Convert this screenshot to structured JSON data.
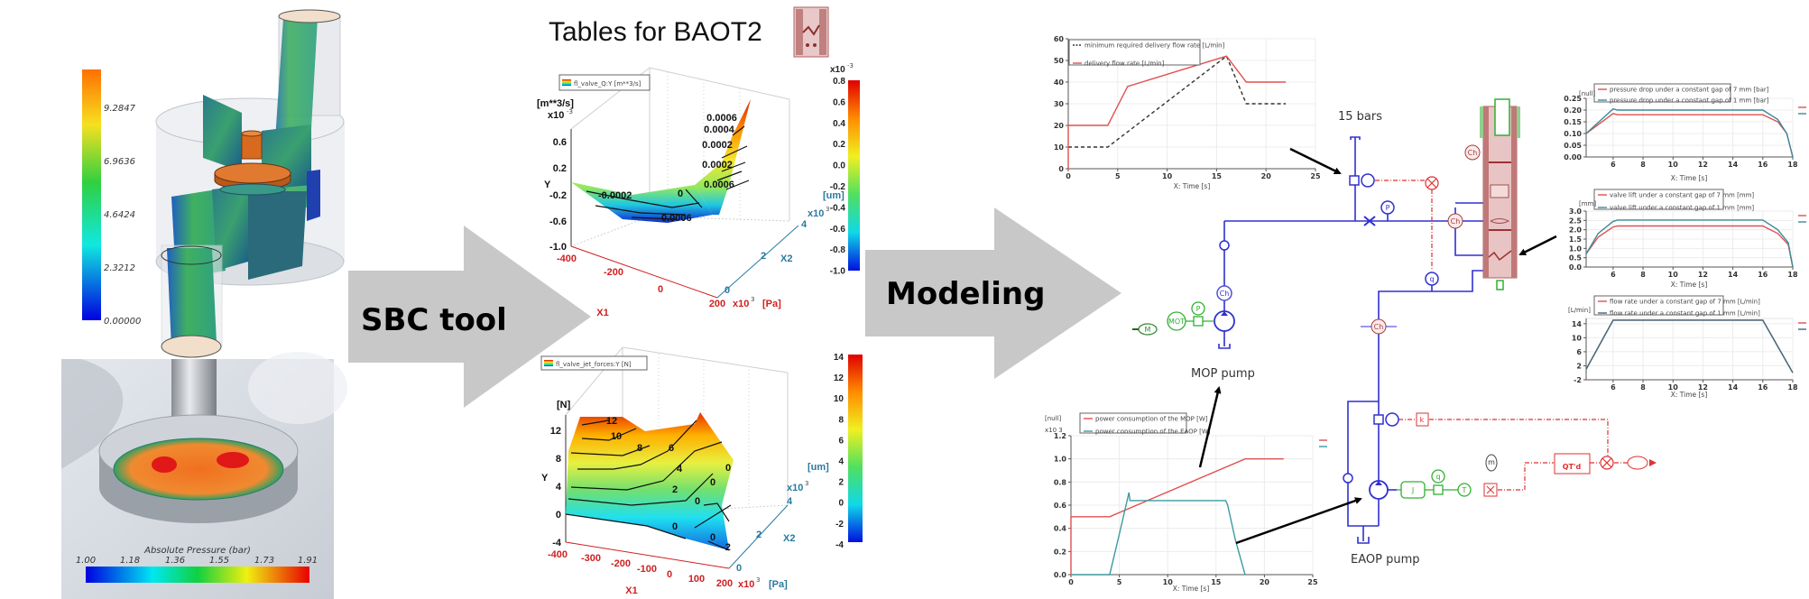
{
  "cfd_flow": {
    "colorbar_ticks": [
      "9.2847",
      "6.9636",
      "4.6424",
      "2.3212",
      "0.00000"
    ],
    "colors": {
      "max": "#ff7000",
      "min": "#0000e0",
      "valve": "#d86a20"
    }
  },
  "cfd_pressure": {
    "title": "Absolute Pressure (bar)",
    "ticks": [
      "1.00",
      "1.18",
      "1.36",
      "1.55",
      "1.73",
      "1.91"
    ]
  },
  "steps": {
    "sbc": "SBC tool",
    "modeling": "Modeling",
    "arrow_color": "#c8c8c8"
  },
  "tables": {
    "title": "Tables for BAOT2",
    "flow_plot": {
      "legend": "fl_valve_Q:Y [m**3/s]",
      "y_unit": "[m**3/s]",
      "y_exp_base": "x10",
      "y_exp": "-3",
      "y_label": "Y",
      "y_ticks": [
        "0.6",
        "0.2",
        "-0.2",
        "-0.6",
        "-1.0"
      ],
      "x1_label": "X1",
      "x1_ticks": [
        "-400",
        "-200",
        "0",
        "200"
      ],
      "x1_exp_base": "x10",
      "x1_exp": "3",
      "x1_unit": "[Pa]",
      "x2_label": "X2",
      "x2_ticks": [
        "0",
        "2",
        "4"
      ],
      "x2_exp_base": "x10",
      "x2_exp": "3",
      "x2_unit": "[um]",
      "contour_labels": [
        "0.0006",
        "0.0004",
        "0.0002",
        "0.0002",
        "0.0006",
        "-0.0002",
        "0",
        "0.0006"
      ],
      "colorbar_exp_base": "x10",
      "colorbar_exp": "-3",
      "colorbar_ticks": [
        "0.8",
        "0.6",
        "0.4",
        "0.2",
        "0.0",
        "-0.2",
        "-0.4",
        "-0.6",
        "-0.8",
        "-1.0"
      ]
    },
    "force_plot": {
      "legend": "fl_valve_jet_forces:Y [N]",
      "y_unit": "[N]",
      "y_label": "Y",
      "y_ticks": [
        "12",
        "8",
        "4",
        "0",
        "-4"
      ],
      "x1_label": "X1",
      "x1_ticks": [
        "-400",
        "-300",
        "-200",
        "-100",
        "0",
        "100",
        "200"
      ],
      "x1_exp_base": "x10",
      "x1_exp": "3",
      "x1_unit": "[Pa]",
      "x2_label": "X2",
      "x2_ticks": [
        "0",
        "2",
        "4"
      ],
      "x2_exp_base": "x10",
      "x2_exp": "3",
      "x2_unit": "[um]",
      "contour_labels": [
        "12",
        "10",
        "8",
        "6",
        "4",
        "2",
        "0",
        "0",
        "0",
        "0",
        "0",
        "-2"
      ],
      "colorbar_ticks": [
        "14",
        "12",
        "10",
        "8",
        "6",
        "4",
        "2",
        "0",
        "-2",
        "-4"
      ]
    }
  },
  "schematic": {
    "label_pressure": "15 bars",
    "label_mop": "MOP pump",
    "label_eaop": "EAOP pump",
    "components": {
      "chamber": "Ch",
      "pressure": "P",
      "flow": "q",
      "motor_signal": "M",
      "motor": "MOT",
      "inertia": "J",
      "torque": "T",
      "mass": "m",
      "gain": "k",
      "controller": "QT'd"
    },
    "colors": {
      "hydraulic": "#2a2ad0",
      "signal": "#e03030",
      "mechanical": "#30b030",
      "valve_body": "#b06060"
    }
  },
  "chart_data": [
    {
      "type": "line",
      "xlabel": "X: Time [s]",
      "y_unit": "",
      "y_exp": "",
      "xlim": [
        0,
        25
      ],
      "ylim": [
        0,
        60
      ],
      "xticks": [
        "0",
        "5",
        "10",
        "15",
        "20",
        "25"
      ],
      "yticks": [
        "0",
        "10",
        "20",
        "30",
        "40",
        "50",
        "60"
      ],
      "grid": true,
      "legend": "top-left",
      "series": [
        {
          "name": "minimum required delivery flow rate [L/min]",
          "color": "#333333",
          "dash": true,
          "points": [
            [
              0,
              10
            ],
            [
              4,
              10
            ],
            [
              16,
              52
            ],
            [
              18,
              30
            ],
            [
              22,
              30
            ]
          ]
        },
        {
          "name": "delivery flow rate  [L/min]",
          "color": "#e05050",
          "dash": false,
          "points": [
            [
              0,
              0
            ],
            [
              0,
              20
            ],
            [
              4,
              20
            ],
            [
              6,
              38
            ],
            [
              16,
              52
            ],
            [
              18,
              40
            ],
            [
              22,
              40
            ]
          ]
        }
      ]
    },
    {
      "type": "line",
      "xlabel": "X: Time [s]",
      "y_unit": "[null]",
      "y_exp": "",
      "xlim": [
        4.2,
        18
      ],
      "ylim": [
        0,
        0.25
      ],
      "xticks": [
        "6",
        "8",
        "10",
        "12",
        "14",
        "16",
        "18"
      ],
      "yticks": [
        "0.00",
        "0.05",
        "0.10",
        "0.15",
        "0.20",
        "0.25"
      ],
      "grid": true,
      "legend": "top",
      "series": [
        {
          "name": "pressure drop under a constant gap of 7 mm [bar]",
          "color": "#e05050",
          "dash": false,
          "points": [
            [
              4.2,
              0.1
            ],
            [
              6,
              0.185
            ],
            [
              6.3,
              0.18
            ],
            [
              16,
              0.18
            ],
            [
              17,
              0.15
            ],
            [
              17.6,
              0.1
            ],
            [
              18,
              0
            ]
          ]
        },
        {
          "name": "pressure drop under a constant gap of 1 mm [bar]",
          "color": "#3a8a9a",
          "dash": false,
          "points": [
            [
              4.2,
              0.1
            ],
            [
              6,
              0.205
            ],
            [
              6.3,
              0.2
            ],
            [
              16,
              0.2
            ],
            [
              17,
              0.16
            ],
            [
              17.6,
              0.1
            ],
            [
              18,
              0
            ]
          ]
        }
      ]
    },
    {
      "type": "line",
      "xlabel": "X: Time [s]",
      "y_unit": "[mm]",
      "y_exp": "",
      "xlim": [
        4.2,
        18
      ],
      "ylim": [
        0,
        3
      ],
      "xticks": [
        "6",
        "8",
        "10",
        "12",
        "14",
        "16",
        "18"
      ],
      "yticks": [
        "0.0",
        "0.5",
        "1.0",
        "1.5",
        "2.0",
        "2.5",
        "3.0"
      ],
      "grid": true,
      "legend": "top",
      "series": [
        {
          "name": "valve lift under a constant gap of 7 mm [mm]",
          "color": "#e05050",
          "dash": false,
          "points": [
            [
              4.2,
              0.7
            ],
            [
              5,
              1.6
            ],
            [
              6,
              2.15
            ],
            [
              6.3,
              2.2
            ],
            [
              16,
              2.2
            ],
            [
              17,
              1.8
            ],
            [
              17.7,
              1.2
            ],
            [
              18,
              0
            ]
          ]
        },
        {
          "name": "valve lift under a constant gap of 1 mm  [mm]",
          "color": "#3a8a9a",
          "dash": false,
          "points": [
            [
              4.2,
              0.7
            ],
            [
              5,
              1.8
            ],
            [
              6,
              2.45
            ],
            [
              6.3,
              2.52
            ],
            [
              16,
              2.52
            ],
            [
              17,
              2.0
            ],
            [
              17.7,
              1.3
            ],
            [
              18,
              0
            ]
          ]
        }
      ]
    },
    {
      "type": "line",
      "xlabel": "X: Time [s]",
      "y_unit": "[L/min]",
      "y_exp": "",
      "xlim": [
        4.2,
        18
      ],
      "ylim": [
        -2,
        15.5
      ],
      "xticks": [
        "6",
        "8",
        "10",
        "12",
        "14",
        "16",
        "18"
      ],
      "yticks": [
        "-2",
        "2",
        "6",
        "10",
        "14"
      ],
      "grid": true,
      "legend": "top",
      "series": [
        {
          "name": "flow rate under a constant gap of 7 mm [L/min]",
          "color": "#e05050",
          "dash": false,
          "points": [
            [
              4.2,
              1
            ],
            [
              6,
              15
            ],
            [
              16,
              15
            ],
            [
              18,
              0
            ]
          ]
        },
        {
          "name": "flow rate under a constant gap of 1 mm [L/min]",
          "color": "#3a6a7a",
          "dash": false,
          "points": [
            [
              4.2,
              1
            ],
            [
              6,
              15
            ],
            [
              16,
              15
            ],
            [
              18,
              0
            ]
          ]
        }
      ]
    },
    {
      "type": "line",
      "xlabel": "X: Time [s]",
      "y_unit": "[null]",
      "y_exp": "x10 3",
      "xlim": [
        0,
        25
      ],
      "ylim": [
        0,
        1.2
      ],
      "xticks": [
        "0",
        "5",
        "10",
        "15",
        "20",
        "25"
      ],
      "yticks": [
        "0.0",
        "0.2",
        "0.4",
        "0.6",
        "0.8",
        "1.0",
        "1.2"
      ],
      "grid": true,
      "legend": "top-left",
      "series": [
        {
          "name": "power consumption of the MOP [W]",
          "color": "#e05050",
          "dash": false,
          "points": [
            [
              0,
              0
            ],
            [
              0,
              0.5
            ],
            [
              4,
              0.5
            ],
            [
              18,
              1.0
            ],
            [
              22,
              1.0
            ]
          ]
        },
        {
          "name": "power consumption of the EAOP [W]",
          "color": "#3a9aa0",
          "dash": false,
          "points": [
            [
              0,
              0
            ],
            [
              4,
              0
            ],
            [
              5,
              0.35
            ],
            [
              6,
              0.71
            ],
            [
              6.1,
              0.64
            ],
            [
              16,
              0.64
            ],
            [
              16.2,
              0.6
            ],
            [
              17,
              0.3
            ],
            [
              18,
              0
            ]
          ]
        }
      ]
    }
  ]
}
